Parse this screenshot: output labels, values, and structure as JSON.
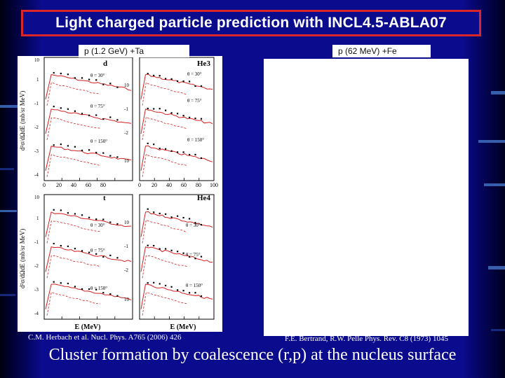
{
  "slide": {
    "title": "Light charged particle prediction with INCL4.5-ABLA07",
    "left_label": "p (1.2 GeV) +Ta",
    "right_label": "p (62 MeV) +Fe",
    "left_citation": "C.M. Herbach et al. Nucl. Phys. A765 (2006) 426",
    "right_citation": "F.E. Bertrand, R.W. Pelle Phys. Rev. C8 (1973) 1045",
    "conclusion": "Cluster formation by coalescence (r,p) at the nucleus surface"
  },
  "figure": {
    "y_label": "d²σ/dΩdE  (mb/sr MeV)",
    "x_label": "E (MeV)",
    "x_ticks": [
      "0",
      "20",
      "40",
      "60",
      "80",
      "100"
    ],
    "y_exp_ticks": [
      "10",
      "1",
      "-1",
      "-2",
      "-3",
      "-4"
    ],
    "panels": [
      "d",
      "He3",
      "t",
      "He4"
    ],
    "angles": [
      "θ = 30°",
      "θ = 75°",
      "θ = 150°"
    ]
  },
  "colors": {
    "background": "#0b0b8e",
    "title_border": "#d9262a",
    "model_line": "#d42020",
    "data_points": "#000000"
  }
}
